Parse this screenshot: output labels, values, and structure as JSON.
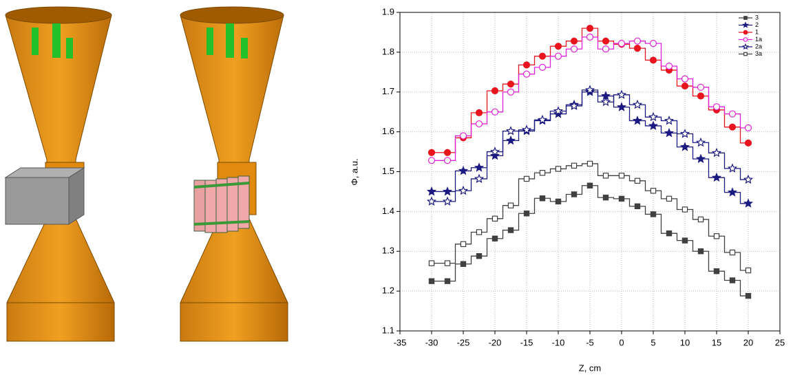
{
  "chart_data": {
    "type": "line",
    "step": true,
    "xlabel": "Z, cm",
    "ylabel": "Φ, a.u.",
    "xlim": [
      -35,
      25
    ],
    "xticks": [
      -35,
      -30,
      -25,
      -20,
      -15,
      -10,
      -5,
      0,
      5,
      10,
      15,
      20,
      25
    ],
    "ylim": [
      1.1,
      1.9
    ],
    "yticks": [
      1.1,
      1.2,
      1.3,
      1.4,
      1.5,
      1.6,
      1.7,
      1.8,
      1.9
    ],
    "grid": true,
    "legend": "upper right",
    "x": [
      -30,
      -27.5,
      -25,
      -22.5,
      -20,
      -17.5,
      -15,
      -12.5,
      -10,
      -7.5,
      -5,
      -2.5,
      0,
      2.5,
      5,
      7.5,
      10,
      12.5,
      15,
      17.5,
      20
    ],
    "series": [
      {
        "name": "3",
        "color": "#404040",
        "marker": "square",
        "filled": true,
        "values": [
          1.225,
          1.225,
          1.268,
          1.288,
          1.332,
          1.353,
          1.395,
          1.433,
          1.425,
          1.443,
          1.465,
          1.435,
          1.432,
          1.413,
          1.393,
          1.345,
          1.327,
          1.3,
          1.25,
          1.227,
          1.188
        ]
      },
      {
        "name": "2",
        "color": "#1a1a80",
        "marker": "star",
        "filled": true,
        "values": [
          1.45,
          1.45,
          1.502,
          1.51,
          1.54,
          1.578,
          1.602,
          1.628,
          1.645,
          1.668,
          1.7,
          1.69,
          1.662,
          1.628,
          1.615,
          1.597,
          1.562,
          1.532,
          1.485,
          1.448,
          1.42
        ]
      },
      {
        "name": "1",
        "color": "#e8141e",
        "marker": "circle",
        "filled": true,
        "values": [
          1.548,
          1.548,
          1.585,
          1.648,
          1.703,
          1.72,
          1.768,
          1.79,
          1.815,
          1.828,
          1.86,
          1.828,
          1.82,
          1.81,
          1.78,
          1.755,
          1.715,
          1.69,
          1.655,
          1.612,
          1.572
        ]
      },
      {
        "name": "1a",
        "color": "#e020d8",
        "marker": "circle",
        "filled": false,
        "values": [
          1.528,
          1.528,
          1.59,
          1.62,
          1.65,
          1.7,
          1.745,
          1.762,
          1.79,
          1.808,
          1.838,
          1.808,
          1.822,
          1.828,
          1.822,
          1.765,
          1.733,
          1.712,
          1.663,
          1.645,
          1.61
        ]
      },
      {
        "name": "2a",
        "color": "#1a1a80",
        "marker": "star",
        "filled": false,
        "values": [
          1.425,
          1.425,
          1.452,
          1.482,
          1.55,
          1.602,
          1.605,
          1.63,
          1.652,
          1.665,
          1.705,
          1.675,
          1.693,
          1.668,
          1.637,
          1.628,
          1.595,
          1.573,
          1.547,
          1.508,
          1.48
        ]
      },
      {
        "name": "3a",
        "color": "#404040",
        "marker": "square",
        "filled": false,
        "values": [
          1.27,
          1.27,
          1.318,
          1.348,
          1.382,
          1.415,
          1.482,
          1.497,
          1.507,
          1.515,
          1.52,
          1.49,
          1.49,
          1.477,
          1.452,
          1.432,
          1.405,
          1.38,
          1.338,
          1.297,
          1.252
        ]
      }
    ]
  }
}
